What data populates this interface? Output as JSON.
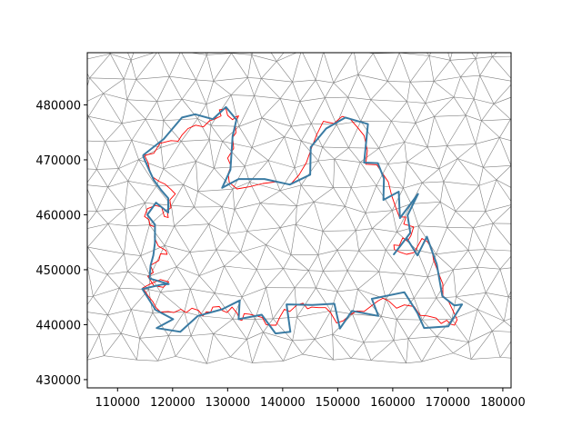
{
  "chart_data": {
    "type": "line",
    "title": "",
    "xlabel": "",
    "ylabel": "",
    "xlim": [
      104500,
      181500
    ],
    "ylim": [
      428500,
      489500
    ],
    "grid": false,
    "x_ticks": [
      110000,
      120000,
      130000,
      140000,
      150000,
      160000,
      170000,
      180000
    ],
    "x_tick_labels": [
      "110000",
      "120000",
      "130000",
      "140000",
      "150000",
      "160000",
      "170000",
      "180000"
    ],
    "y_ticks": [
      430000,
      440000,
      450000,
      460000,
      470000,
      480000
    ],
    "y_tick_labels": [
      "430000",
      "440000",
      "450000",
      "460000",
      "470000",
      "480000"
    ],
    "colors": {
      "mesh": "#808080",
      "boundary_detailed": "#ff0000",
      "boundary_snapped": "#3a7ba3"
    },
    "series": [
      {
        "type": "polygon",
        "color": "#ff0000",
        "points": [
          [
            114900,
            470800
          ],
          [
            116600,
            471200
          ],
          [
            117700,
            473000
          ],
          [
            119700,
            473500
          ],
          [
            121000,
            473400
          ],
          [
            121700,
            474500
          ],
          [
            122800,
            475700
          ],
          [
            124200,
            476300
          ],
          [
            125600,
            476000
          ],
          [
            126700,
            477100
          ],
          [
            127600,
            477400
          ],
          [
            128800,
            478000
          ],
          [
            128500,
            479100
          ],
          [
            129700,
            479300
          ],
          [
            130000,
            478100
          ],
          [
            130900,
            477300
          ],
          [
            131400,
            477800
          ],
          [
            132000,
            478000
          ],
          [
            131400,
            476800
          ],
          [
            131500,
            474900
          ],
          [
            130900,
            474100
          ],
          [
            131100,
            472100
          ],
          [
            130600,
            471300
          ],
          [
            130000,
            470300
          ],
          [
            130600,
            468900
          ],
          [
            130100,
            467500
          ],
          [
            130300,
            465900
          ],
          [
            131700,
            464700
          ],
          [
            134000,
            465100
          ],
          [
            136400,
            465700
          ],
          [
            138800,
            466000
          ],
          [
            141400,
            465500
          ],
          [
            143000,
            467300
          ],
          [
            144300,
            469500
          ],
          [
            145300,
            472300
          ],
          [
            146200,
            474600
          ],
          [
            147400,
            477000
          ],
          [
            149300,
            476600
          ],
          [
            150800,
            477900
          ],
          [
            152200,
            477500
          ],
          [
            153600,
            475900
          ],
          [
            154800,
            474400
          ],
          [
            155400,
            471700
          ],
          [
            155100,
            469200
          ],
          [
            157100,
            469100
          ],
          [
            158100,
            467600
          ],
          [
            159200,
            466000
          ],
          [
            159800,
            463500
          ],
          [
            160600,
            461200
          ],
          [
            161200,
            459600
          ],
          [
            162400,
            459600
          ],
          [
            162000,
            458300
          ],
          [
            163800,
            457800
          ],
          [
            163300,
            456200
          ],
          [
            162700,
            455200
          ],
          [
            161800,
            455800
          ],
          [
            161200,
            454400
          ],
          [
            160200,
            454500
          ],
          [
            160300,
            453700
          ],
          [
            161300,
            453200
          ],
          [
            162500,
            452800
          ],
          [
            163800,
            453100
          ],
          [
            164500,
            454200
          ],
          [
            165300,
            455700
          ],
          [
            166300,
            455100
          ],
          [
            167100,
            453800
          ],
          [
            167400,
            451800
          ],
          [
            168200,
            449700
          ],
          [
            169100,
            447400
          ],
          [
            169100,
            445300
          ],
          [
            170200,
            444100
          ],
          [
            171100,
            442200
          ],
          [
            171700,
            440900
          ],
          [
            171200,
            439900
          ],
          [
            170500,
            440100
          ],
          [
            169800,
            440800
          ],
          [
            168800,
            440200
          ],
          [
            167900,
            441200
          ],
          [
            166300,
            441600
          ],
          [
            165000,
            441700
          ],
          [
            163900,
            443300
          ],
          [
            162100,
            443600
          ],
          [
            160700,
            443000
          ],
          [
            159300,
            444300
          ],
          [
            158200,
            444800
          ],
          [
            157300,
            444300
          ],
          [
            156100,
            443400
          ],
          [
            154800,
            442400
          ],
          [
            153500,
            442500
          ],
          [
            152100,
            441700
          ],
          [
            151000,
            440700
          ],
          [
            149800,
            440300
          ],
          [
            148700,
            442200
          ],
          [
            147800,
            443100
          ],
          [
            146500,
            443100
          ],
          [
            145300,
            443200
          ],
          [
            144500,
            442900
          ],
          [
            143700,
            443900
          ],
          [
            142600,
            443600
          ],
          [
            141300,
            442400
          ],
          [
            140300,
            442800
          ],
          [
            139500,
            441400
          ],
          [
            138800,
            439900
          ],
          [
            138000,
            439900
          ],
          [
            137000,
            440000
          ],
          [
            136300,
            441300
          ],
          [
            135200,
            441600
          ],
          [
            134000,
            441900
          ],
          [
            133000,
            442000
          ],
          [
            132600,
            440800
          ],
          [
            132200,
            440900
          ],
          [
            131700,
            442100
          ],
          [
            130800,
            443200
          ],
          [
            129900,
            442200
          ],
          [
            129000,
            442600
          ],
          [
            128500,
            443300
          ],
          [
            127300,
            443200
          ],
          [
            126900,
            442300
          ],
          [
            126100,
            442300
          ],
          [
            125500,
            441600
          ],
          [
            124700,
            442600
          ],
          [
            123500,
            443000
          ],
          [
            122500,
            442200
          ],
          [
            121500,
            442800
          ],
          [
            120200,
            442200
          ],
          [
            119200,
            442400
          ],
          [
            117800,
            442300
          ],
          [
            117000,
            443100
          ],
          [
            116400,
            444200
          ],
          [
            115500,
            445300
          ],
          [
            114600,
            446700
          ],
          [
            116300,
            447600
          ],
          [
            117800,
            448200
          ],
          [
            119300,
            447800
          ],
          [
            118300,
            446800
          ],
          [
            116600,
            447100
          ],
          [
            115500,
            448800
          ],
          [
            116500,
            449500
          ],
          [
            116000,
            450800
          ],
          [
            117500,
            451700
          ],
          [
            117800,
            452900
          ],
          [
            119000,
            452800
          ],
          [
            118800,
            453500
          ],
          [
            117400,
            454300
          ],
          [
            116700,
            455900
          ],
          [
            116800,
            457800
          ],
          [
            115900,
            458100
          ],
          [
            115700,
            459100
          ],
          [
            114900,
            459700
          ],
          [
            115400,
            461100
          ],
          [
            116900,
            461700
          ],
          [
            118000,
            461400
          ],
          [
            118500,
            459700
          ],
          [
            119200,
            459500
          ],
          [
            119000,
            460700
          ],
          [
            119700,
            461300
          ],
          [
            119500,
            462700
          ],
          [
            120500,
            463800
          ],
          [
            119700,
            464600
          ],
          [
            118600,
            465600
          ],
          [
            117500,
            466100
          ],
          [
            116200,
            467000
          ],
          [
            115800,
            468300
          ],
          [
            115500,
            469600
          ],
          [
            114900,
            470800
          ]
        ]
      },
      {
        "type": "polygon",
        "color": "#3a7ba3",
        "points": [
          [
            114600,
            470800
          ],
          [
            118400,
            473800
          ],
          [
            121700,
            477700
          ],
          [
            124100,
            478300
          ],
          [
            127300,
            477400
          ],
          [
            129700,
            479600
          ],
          [
            131600,
            477300
          ],
          [
            130900,
            474300
          ],
          [
            130500,
            468200
          ],
          [
            129000,
            464900
          ],
          [
            132000,
            466500
          ],
          [
            136700,
            466500
          ],
          [
            141300,
            465500
          ],
          [
            145000,
            467300
          ],
          [
            145100,
            472300
          ],
          [
            147900,
            475700
          ],
          [
            151400,
            477700
          ],
          [
            155500,
            476500
          ],
          [
            154800,
            469500
          ],
          [
            157300,
            469400
          ],
          [
            158400,
            466600
          ],
          [
            158300,
            462700
          ],
          [
            161100,
            464200
          ],
          [
            161300,
            459400
          ],
          [
            164600,
            463800
          ],
          [
            162700,
            459900
          ],
          [
            163200,
            456700
          ],
          [
            160200,
            452800
          ],
          [
            162500,
            455800
          ],
          [
            164500,
            452600
          ],
          [
            166200,
            456000
          ],
          [
            168000,
            451000
          ],
          [
            169000,
            445200
          ],
          [
            171200,
            443500
          ],
          [
            172600,
            443700
          ],
          [
            170100,
            439700
          ],
          [
            165700,
            439400
          ],
          [
            164500,
            442100
          ],
          [
            162100,
            445900
          ],
          [
            156200,
            444700
          ],
          [
            157400,
            441600
          ],
          [
            152600,
            442500
          ],
          [
            150400,
            439300
          ],
          [
            149400,
            443800
          ],
          [
            145400,
            443600
          ],
          [
            140700,
            443700
          ],
          [
            141400,
            438700
          ],
          [
            138700,
            438400
          ],
          [
            136200,
            441800
          ],
          [
            132000,
            441000
          ],
          [
            132200,
            444400
          ],
          [
            129000,
            442800
          ],
          [
            124600,
            441600
          ],
          [
            121400,
            438700
          ],
          [
            117100,
            439400
          ],
          [
            120100,
            441000
          ],
          [
            116900,
            442700
          ],
          [
            114500,
            446500
          ],
          [
            118000,
            447300
          ],
          [
            119300,
            447400
          ],
          [
            115800,
            448400
          ],
          [
            116000,
            450800
          ],
          [
            116500,
            452600
          ],
          [
            116800,
            454900
          ],
          [
            116800,
            458200
          ],
          [
            115400,
            460000
          ],
          [
            117000,
            462200
          ],
          [
            119200,
            460400
          ],
          [
            119200,
            463000
          ],
          [
            117900,
            464500
          ],
          [
            116600,
            466300
          ],
          [
            115800,
            468000
          ],
          [
            114600,
            470800
          ]
        ]
      }
    ]
  }
}
